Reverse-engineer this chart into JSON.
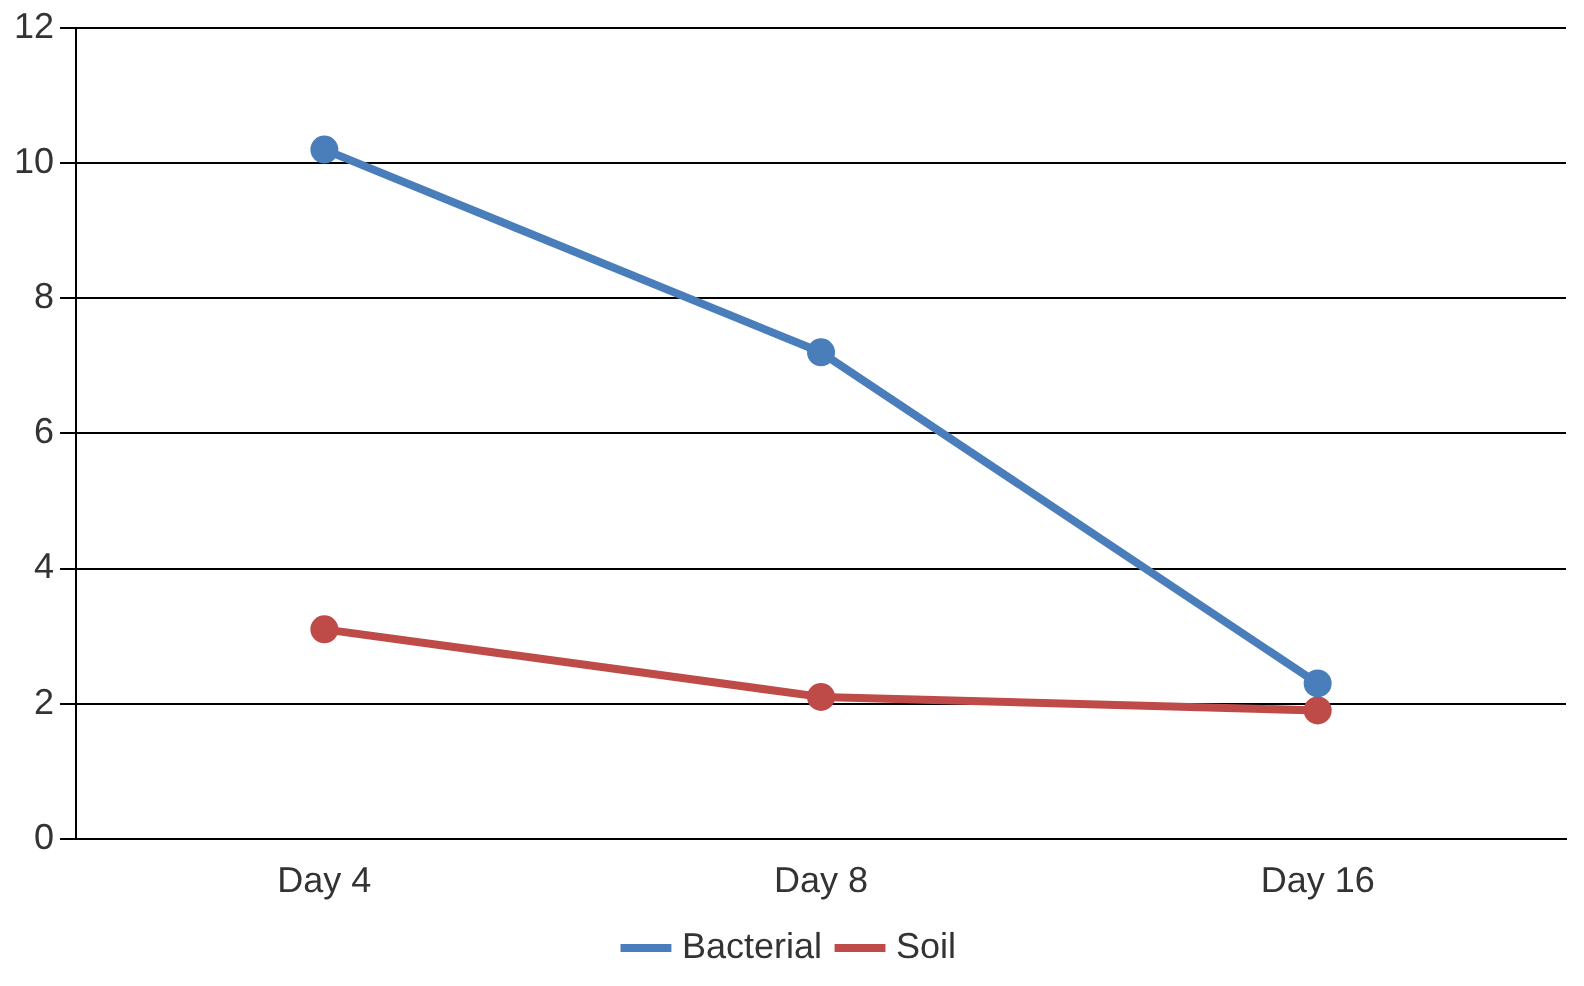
{
  "chart_data": {
    "type": "line",
    "categories": [
      "Day 4",
      "Day 8",
      "Day 16"
    ],
    "series": [
      {
        "name": "Bacterial",
        "color": "#4a7ebb",
        "values": [
          10.2,
          7.2,
          2.3
        ]
      },
      {
        "name": "Soil",
        "color": "#be4b48",
        "values": [
          3.1,
          2.1,
          1.9
        ]
      }
    ],
    "ylim": [
      0,
      12
    ],
    "yticks": [
      0,
      2,
      4,
      6,
      8,
      10,
      12
    ],
    "grid": "y",
    "legend": "bottom",
    "marker": "circle",
    "line_style": "solid"
  }
}
